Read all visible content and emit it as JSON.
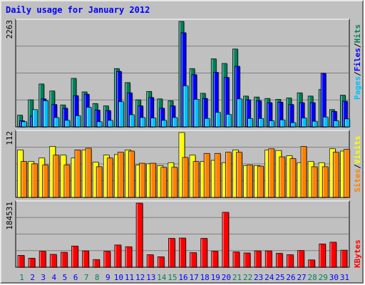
{
  "title": "Daily usage for January 2012",
  "colors": {
    "title": "#0000ff",
    "hits": "#00805c",
    "files": "#0000ff",
    "pages": "#00c0ff",
    "visits": "#ffff00",
    "sites": "#ff8000",
    "kbytes": "#ff0000",
    "weekend": "#00805c",
    "weekday": "#0000ff",
    "panel": "#c0c0c0",
    "grid": "#808080"
  },
  "legend": {
    "top": [
      {
        "text": "Pages",
        "color": "#00c0ff"
      },
      {
        "text": "/",
        "color": "#000000"
      },
      {
        "text": "Files",
        "color": "#0000ff"
      },
      {
        "text": "/",
        "color": "#000000"
      },
      {
        "text": "Hits",
        "color": "#00805c"
      }
    ],
    "middle": [
      {
        "text": "Sites",
        "color": "#ff8000"
      },
      {
        "text": "/",
        "color": "#000000"
      },
      {
        "text": "Visits",
        "color": "#ffff00"
      }
    ],
    "bottom": [
      {
        "text": "KBytes",
        "color": "#ff0000"
      }
    ]
  },
  "chart_data": [
    {
      "type": "bar",
      "panel": "top",
      "categories": [
        "1",
        "2",
        "3",
        "4",
        "5",
        "6",
        "7",
        "8",
        "9",
        "10",
        "11",
        "12",
        "13",
        "14",
        "15",
        "16",
        "17",
        "18",
        "19",
        "20",
        "21",
        "22",
        "23",
        "24",
        "25",
        "26",
        "27",
        "28",
        "29",
        "30",
        "31"
      ],
      "ylim": [
        0,
        2263
      ],
      "max_label": "2263",
      "weekend_days": [
        "1",
        "7",
        "8",
        "14",
        "15",
        "21",
        "22",
        "28",
        "29"
      ],
      "series": [
        {
          "name": "Hits",
          "values": [
            250,
            580,
            920,
            770,
            470,
            1040,
            750,
            500,
            450,
            1250,
            950,
            580,
            760,
            600,
            560,
            2263,
            1250,
            720,
            1460,
            1360,
            1670,
            660,
            640,
            610,
            590,
            620,
            730,
            660,
            800,
            370,
            680
          ]
        },
        {
          "name": "Files",
          "values": [
            130,
            230,
            600,
            480,
            400,
            670,
            700,
            360,
            350,
            1190,
            730,
            450,
            630,
            400,
            450,
            2020,
            1120,
            610,
            1170,
            1060,
            1300,
            580,
            560,
            520,
            530,
            480,
            520,
            520,
            1150,
            330,
            550
          ]
        },
        {
          "name": "Pages",
          "values": [
            110,
            370,
            560,
            200,
            140,
            240,
            420,
            110,
            140,
            540,
            260,
            200,
            190,
            140,
            200,
            880,
            590,
            180,
            310,
            270,
            600,
            180,
            180,
            130,
            150,
            90,
            190,
            120,
            210,
            130,
            170
          ]
        }
      ]
    },
    {
      "type": "bar",
      "panel": "middle",
      "categories": [
        "1",
        "2",
        "3",
        "4",
        "5",
        "6",
        "7",
        "8",
        "9",
        "10",
        "11",
        "12",
        "13",
        "14",
        "15",
        "16",
        "17",
        "18",
        "19",
        "20",
        "21",
        "22",
        "23",
        "24",
        "25",
        "26",
        "27",
        "28",
        "29",
        "30",
        "31"
      ],
      "ylim": [
        0,
        112
      ],
      "max_label": "112",
      "series": [
        {
          "name": "Visits",
          "values": [
            82,
            62,
            68,
            88,
            73,
            68,
            82,
            61,
            73,
            74,
            82,
            56,
            58,
            55,
            60,
            112,
            73,
            62,
            64,
            60,
            82,
            55,
            55,
            82,
            81,
            72,
            60,
            62,
            60,
            84,
            80
          ]
        },
        {
          "name": "Sites",
          "values": [
            62,
            58,
            56,
            73,
            56,
            82,
            85,
            53,
            68,
            78,
            80,
            59,
            59,
            52,
            52,
            69,
            62,
            76,
            76,
            78,
            78,
            56,
            54,
            84,
            70,
            67,
            88,
            53,
            53,
            78,
            83
          ]
        }
      ]
    },
    {
      "type": "bar",
      "panel": "bottom",
      "categories": [
        "1",
        "2",
        "3",
        "4",
        "5",
        "6",
        "7",
        "8",
        "9",
        "10",
        "11",
        "12",
        "13",
        "14",
        "15",
        "16",
        "17",
        "18",
        "19",
        "20",
        "21",
        "22",
        "23",
        "24",
        "25",
        "26",
        "27",
        "28",
        "29",
        "30",
        "31"
      ],
      "ylim": [
        0,
        184531
      ],
      "max_label": "184531",
      "series": [
        {
          "name": "KBytes",
          "values": [
            34000,
            26000,
            46000,
            37000,
            43000,
            61000,
            47000,
            22000,
            46000,
            64000,
            59000,
            184531,
            36000,
            30000,
            83000,
            84000,
            42000,
            83000,
            46000,
            158000,
            44000,
            41000,
            47000,
            47000,
            40000,
            36000,
            48000,
            21000,
            67000,
            72000,
            49000
          ]
        }
      ]
    }
  ]
}
